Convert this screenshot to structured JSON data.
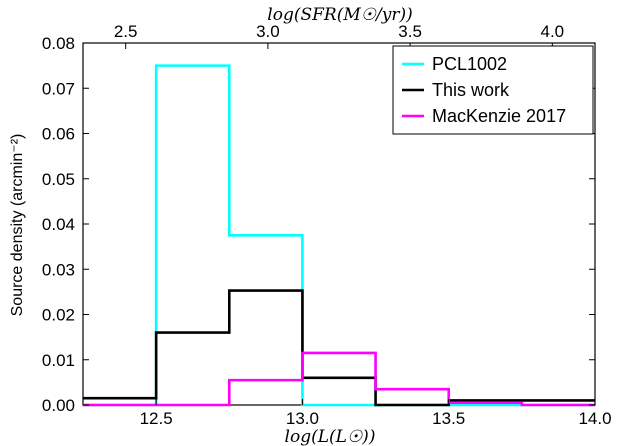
{
  "chart_data": {
    "type": "histogram",
    "xlabel": "log(L(L☉))",
    "x2label": "log(SFR(M☉/yr))",
    "ylabel": "Source density (arcmin⁻²)",
    "xlim": [
      12.25,
      14.0
    ],
    "ylim": [
      0,
      0.08
    ],
    "x2lim": [
      2.35,
      4.15
    ],
    "xticks": [
      12.5,
      13.0,
      13.5,
      14.0
    ],
    "xtick_labels": [
      "12.5",
      "13.0",
      "13.5",
      "14.0"
    ],
    "x2ticks": [
      2.5,
      3.0,
      3.5,
      4.0
    ],
    "x2tick_labels": [
      "2.5",
      "3.0",
      "3.5",
      "4.0"
    ],
    "yticks": [
      0.0,
      0.01,
      0.02,
      0.03,
      0.04,
      0.05,
      0.06,
      0.07,
      0.08
    ],
    "ytick_labels": [
      "0.00",
      "0.01",
      "0.02",
      "0.03",
      "0.04",
      "0.05",
      "0.06",
      "0.07",
      "0.08"
    ],
    "bin_edges": [
      12.25,
      12.5,
      12.75,
      13.0,
      13.25,
      13.5,
      13.75,
      14.0
    ],
    "series": [
      {
        "name": "PCL1002",
        "color": "#00ffff",
        "values": [
          0.0,
          0.075,
          0.0375,
          0.0,
          0.0,
          0.0,
          0.0
        ]
      },
      {
        "name": "This work",
        "color": "#000000",
        "values": [
          0.0015,
          0.016,
          0.0253,
          0.006,
          0.0,
          0.001,
          0.001
        ]
      },
      {
        "name": "MacKenzie 2017",
        "color": "#ff00ff",
        "values": [
          0.0,
          0.0,
          0.0055,
          0.0115,
          0.0035,
          0.0005,
          0.0
        ]
      }
    ],
    "legend_position": "top-right",
    "grid": false
  }
}
